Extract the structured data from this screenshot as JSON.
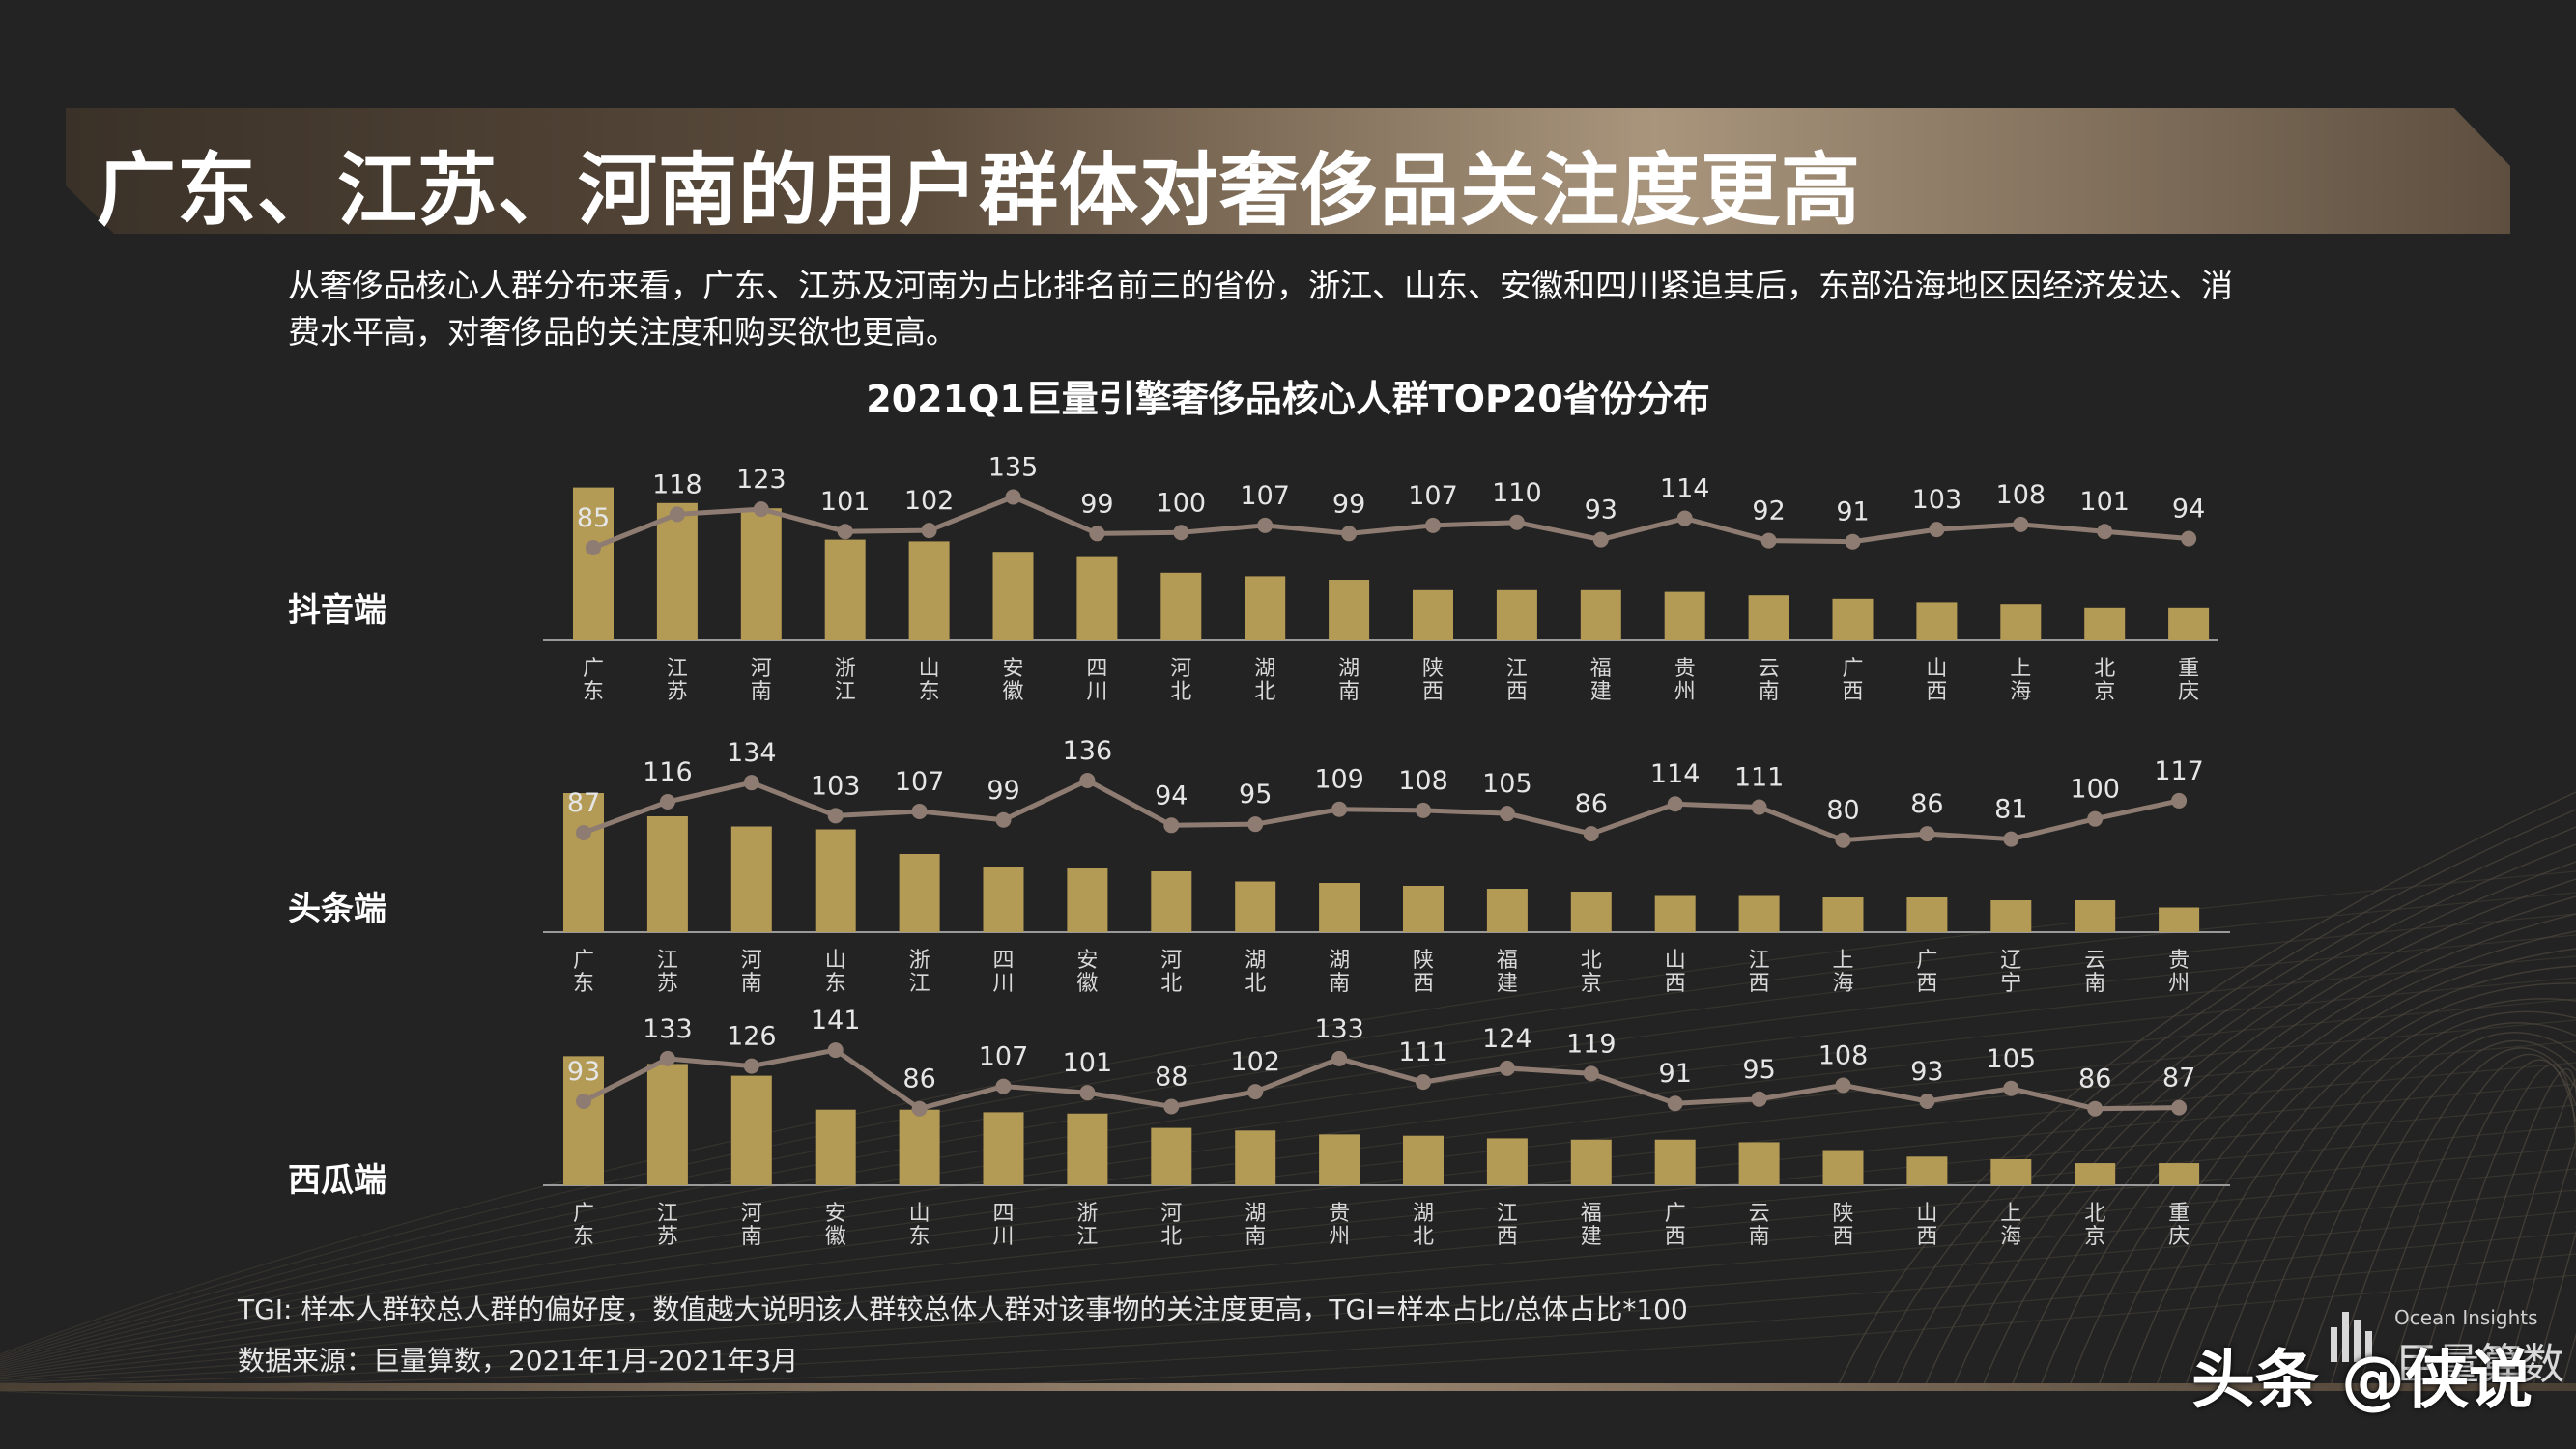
{
  "header": {
    "title": "广东、江苏、河南的用户群体对奢侈品关注度更高"
  },
  "intro": {
    "line1": "从奢侈品核心人群分布来看，广东、江苏及河南为占比排名前三的省份，浙江、山东、安徽和四川紧追其后，东部沿海地区因经济发达、消",
    "line2": "费水平高，对奢侈品的关注度和购买欲也更高。"
  },
  "chart_data": [
    {
      "type": "bar",
      "title": "2021Q1巨量引擎奢侈品核心人群TOP20省份分布",
      "panel_label": "抖音端",
      "categories": [
        "广东",
        "江苏",
        "河南",
        "浙江",
        "山东",
        "安徽",
        "四川",
        "河北",
        "湖北",
        "湖南",
        "陕西",
        "江西",
        "福建",
        "贵州",
        "云南",
        "广西",
        "山西",
        "上海",
        "北京",
        "重庆"
      ],
      "bar_values_relative": [
        0.88,
        0.79,
        0.76,
        0.58,
        0.57,
        0.51,
        0.48,
        0.39,
        0.37,
        0.35,
        0.29,
        0.29,
        0.29,
        0.28,
        0.26,
        0.24,
        0.22,
        0.21,
        0.19,
        0.19
      ],
      "tgi": [
        85,
        118,
        123,
        101,
        102,
        135,
        99,
        100,
        107,
        99,
        107,
        110,
        93,
        114,
        92,
        91,
        103,
        108,
        101,
        94
      ],
      "line_series_name": "TGI"
    },
    {
      "type": "bar",
      "panel_label": "头条端",
      "categories": [
        "广东",
        "江苏",
        "河南",
        "山东",
        "浙江",
        "四川",
        "安徽",
        "河北",
        "湖北",
        "湖南",
        "陕西",
        "福建",
        "北京",
        "山西",
        "江西",
        "上海",
        "广西",
        "辽宁",
        "云南",
        "贵州"
      ],
      "bar_values_relative": [
        0.96,
        0.8,
        0.73,
        0.71,
        0.54,
        0.45,
        0.44,
        0.42,
        0.35,
        0.34,
        0.32,
        0.3,
        0.28,
        0.25,
        0.25,
        0.24,
        0.24,
        0.22,
        0.22,
        0.17
      ],
      "tgi": [
        87,
        116,
        134,
        103,
        107,
        99,
        136,
        94,
        95,
        109,
        108,
        105,
        86,
        114,
        111,
        80,
        86,
        81,
        100,
        117
      ],
      "line_series_name": "TGI"
    },
    {
      "type": "bar",
      "panel_label": "西瓜端",
      "categories": [
        "广东",
        "江苏",
        "河南",
        "安徽",
        "山东",
        "四川",
        "浙江",
        "河北",
        "湖南",
        "贵州",
        "湖北",
        "江西",
        "福建",
        "广西",
        "云南",
        "陕西",
        "山西",
        "上海",
        "北京",
        "重庆"
      ],
      "bar_values_relative": [
        0.99,
        0.93,
        0.84,
        0.58,
        0.58,
        0.56,
        0.55,
        0.44,
        0.42,
        0.39,
        0.38,
        0.36,
        0.35,
        0.35,
        0.33,
        0.27,
        0.22,
        0.2,
        0.17,
        0.17
      ],
      "tgi": [
        93,
        133,
        126,
        141,
        86,
        107,
        101,
        88,
        102,
        133,
        111,
        124,
        119,
        91,
        95,
        108,
        93,
        105,
        86,
        87
      ],
      "line_series_name": "TGI"
    }
  ],
  "footnotes": {
    "tgi_note": "TGI: 样本人群较总人群的偏好度，数值越大说明该人群较总体人群对该事物的关注度更高，TGI=样本占比/总体占比*100",
    "source": "数据来源：巨量算数，2021年1月-2021年3月"
  },
  "branding": {
    "logo_small": "Ocean Insights",
    "logo_big": "巨量算数",
    "watermark": "头条 @侠说"
  },
  "colors": {
    "background": "#232323",
    "bar": "#b39a55",
    "line": "#8e7c72",
    "banner": "#6b5a45"
  }
}
